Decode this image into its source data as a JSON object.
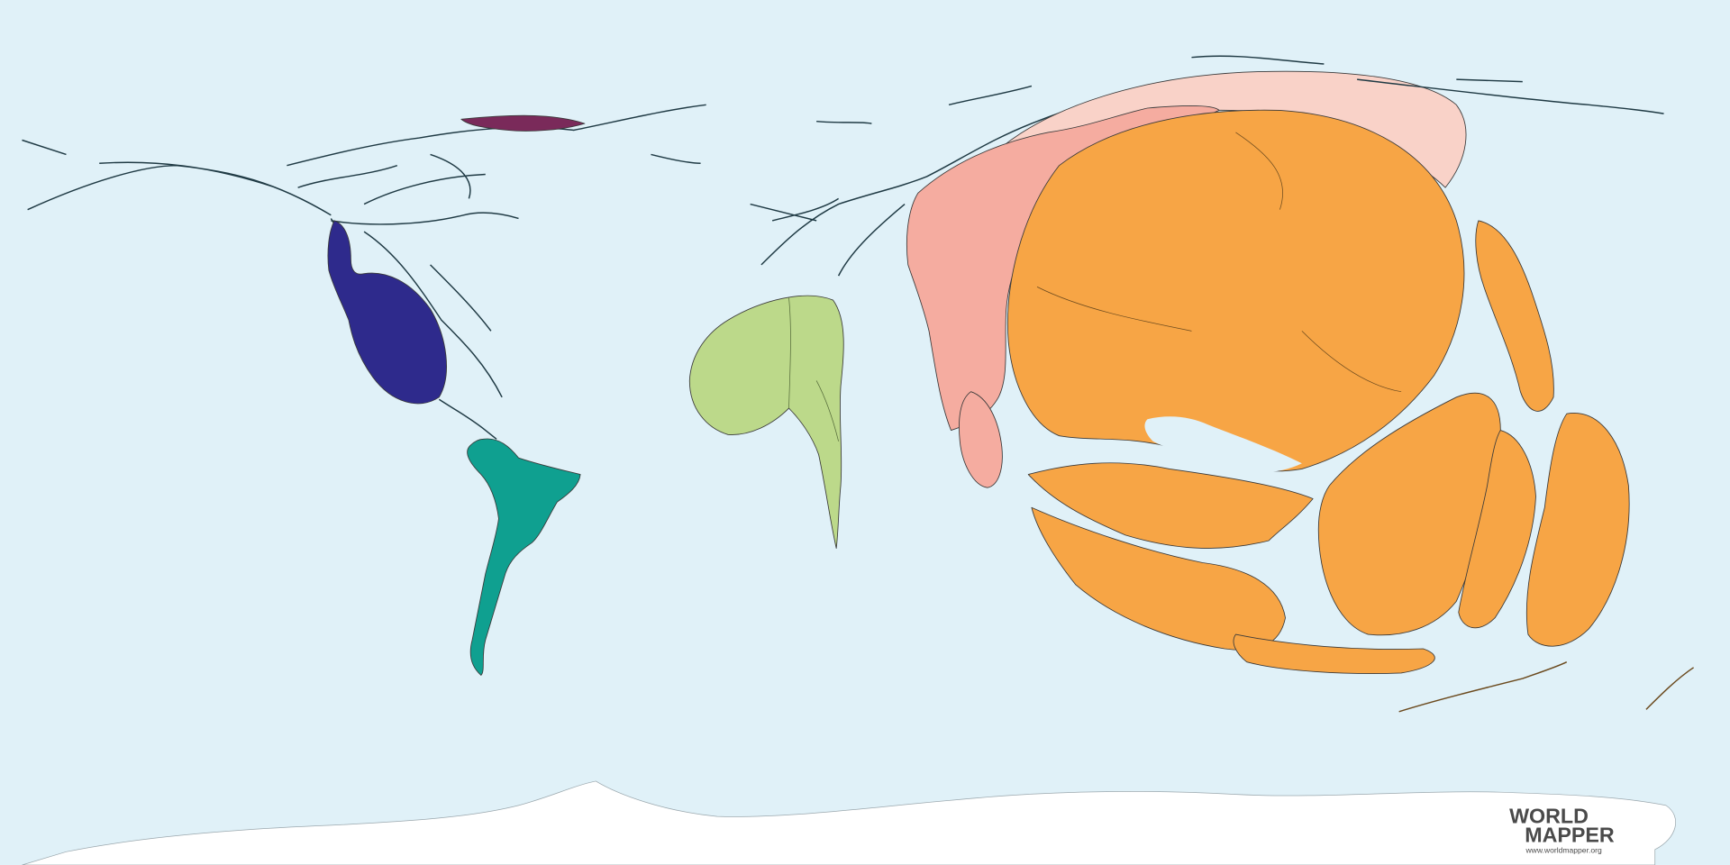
{
  "logo": {
    "line1": "WORLD",
    "line2": "MAPPER",
    "url": "www.worldmapper.org"
  }
}
